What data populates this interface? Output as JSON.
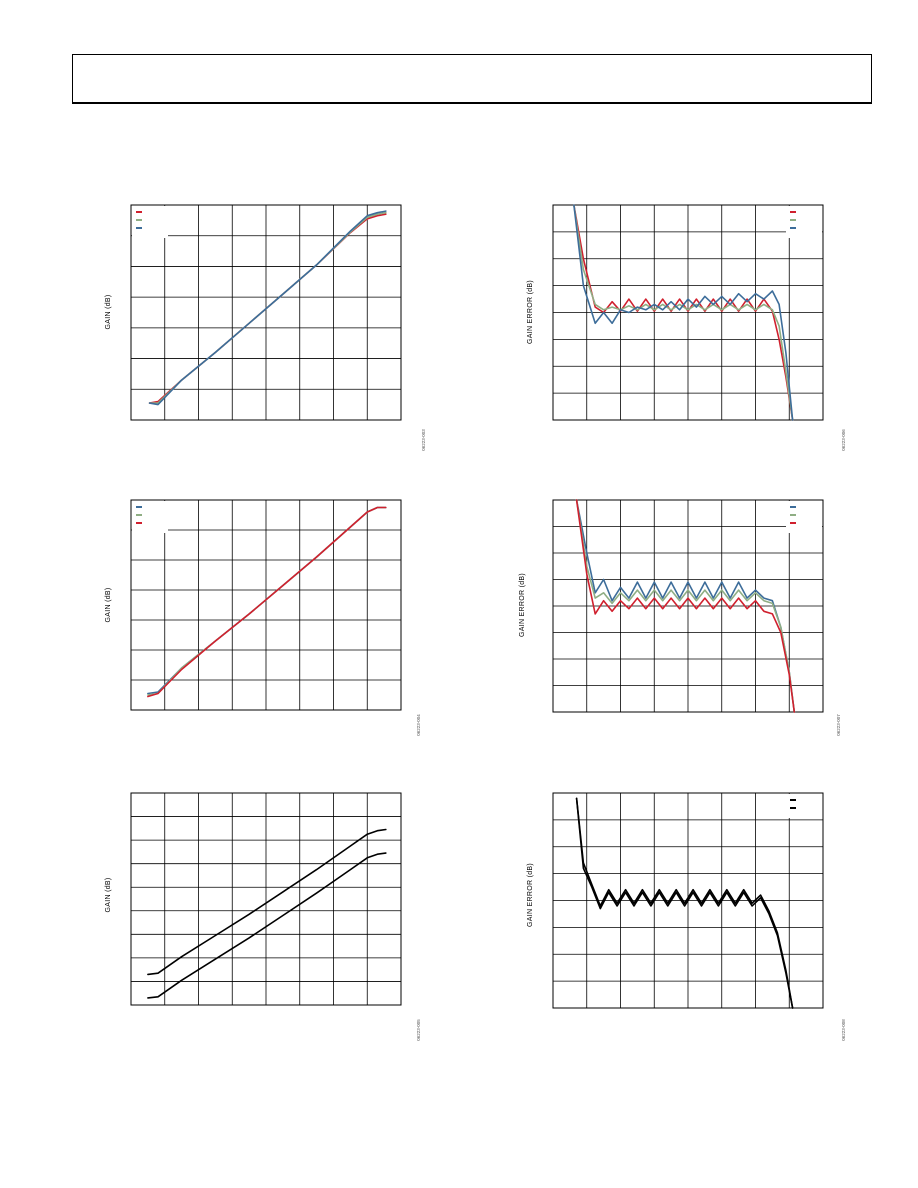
{
  "page": {
    "header_title": ""
  },
  "colors": {
    "red": "#d0202e",
    "blue": "#3d6d9a",
    "green": "#8fae84",
    "black": "#000000",
    "grid": "#000000"
  },
  "chart_data": [
    {
      "id": "chart-1",
      "type": "line",
      "ylabel": "GAIN (dB)",
      "figure_id": "06223-003",
      "legend": {
        "placement": "top-left",
        "entries": 3
      },
      "grid": {
        "x_divisions": 8,
        "y_divisions": 7
      },
      "xlim": [
        0,
        8
      ],
      "ylim": [
        0,
        7
      ],
      "series": [
        {
          "color": "red",
          "x": [
            0.55,
            0.8,
            1.5,
            2.5,
            3.5,
            4.5,
            5.5,
            6.5,
            7.0,
            7.3,
            7.55
          ],
          "y": [
            0.55,
            0.6,
            1.3,
            2.2,
            3.15,
            4.1,
            5.05,
            6.1,
            6.55,
            6.65,
            6.7
          ]
        },
        {
          "color": "green",
          "x": [
            0.55,
            0.8,
            1.5,
            2.5,
            3.5,
            4.5,
            5.5,
            6.5,
            7.0,
            7.3,
            7.55
          ],
          "y": [
            0.55,
            0.55,
            1.3,
            2.2,
            3.15,
            4.1,
            5.05,
            6.12,
            6.6,
            6.7,
            6.75
          ]
        },
        {
          "color": "blue",
          "x": [
            0.55,
            0.8,
            1.5,
            2.5,
            3.5,
            4.5,
            5.5,
            6.5,
            7.0,
            7.3,
            7.55
          ],
          "y": [
            0.55,
            0.5,
            1.3,
            2.2,
            3.15,
            4.1,
            5.05,
            6.15,
            6.65,
            6.75,
            6.8
          ]
        }
      ]
    },
    {
      "id": "chart-2",
      "type": "line",
      "ylabel": "GAIN (dB)",
      "figure_id": "06223-004",
      "legend": {
        "placement": "top-left",
        "entries": 3
      },
      "grid": {
        "x_divisions": 8,
        "y_divisions": 7
      },
      "xlim": [
        0,
        8
      ],
      "ylim": [
        0,
        7
      ],
      "series": [
        {
          "color": "blue",
          "x": [
            0.5,
            0.8,
            1.5,
            2.5,
            3.5,
            4.5,
            5.5,
            6.5,
            7.0,
            7.3,
            7.55
          ],
          "y": [
            0.55,
            0.6,
            1.4,
            2.3,
            3.2,
            4.15,
            5.1,
            6.1,
            6.6,
            6.75,
            6.75
          ]
        },
        {
          "color": "green",
          "x": [
            0.5,
            0.8,
            1.5,
            2.5,
            3.5,
            4.5,
            5.5,
            6.5,
            7.0,
            7.3,
            7.55
          ],
          "y": [
            0.5,
            0.55,
            1.4,
            2.3,
            3.2,
            4.15,
            5.1,
            6.1,
            6.6,
            6.75,
            6.75
          ]
        },
        {
          "color": "red",
          "x": [
            0.5,
            0.8,
            1.5,
            2.5,
            3.5,
            4.5,
            5.5,
            6.5,
            7.0,
            7.3,
            7.55
          ],
          "y": [
            0.45,
            0.55,
            1.35,
            2.3,
            3.2,
            4.15,
            5.1,
            6.1,
            6.6,
            6.75,
            6.75
          ]
        }
      ]
    },
    {
      "id": "chart-3",
      "type": "line",
      "ylabel": "GAIN (dB)",
      "figure_id": "06223-005",
      "legend": null,
      "grid": {
        "x_divisions": 8,
        "y_divisions": 9
      },
      "xlim": [
        0,
        8
      ],
      "ylim": [
        0,
        9
      ],
      "series": [
        {
          "color": "black",
          "x": [
            0.5,
            0.8,
            1.5,
            2.5,
            3.5,
            4.5,
            5.5,
            6.5,
            7.0,
            7.3,
            7.55
          ],
          "y": [
            1.3,
            1.35,
            2.05,
            2.95,
            3.85,
            4.8,
            5.75,
            6.75,
            7.25,
            7.4,
            7.45
          ]
        },
        {
          "color": "black",
          "x": [
            0.5,
            0.8,
            1.5,
            2.5,
            3.5,
            4.5,
            5.5,
            6.5,
            7.0,
            7.3,
            7.55
          ],
          "y": [
            0.3,
            0.35,
            1.05,
            1.95,
            2.85,
            3.8,
            4.75,
            5.75,
            6.25,
            6.4,
            6.45
          ]
        }
      ]
    },
    {
      "id": "chart-4",
      "type": "line",
      "ylabel": "GAIN ERROR (dB)",
      "figure_id": "06223-006",
      "legend": {
        "placement": "top-right",
        "entries": 3
      },
      "grid": {
        "x_divisions": 8,
        "y_divisions": 8
      },
      "xlim": [
        0,
        8
      ],
      "ylim": [
        -4,
        4
      ],
      "series": [
        {
          "color": "red",
          "x": [
            0.62,
            0.9,
            1.25,
            1.5,
            1.75,
            2.0,
            2.25,
            2.5,
            2.75,
            3.0,
            3.25,
            3.5,
            3.75,
            4.0,
            4.25,
            4.5,
            4.75,
            5.0,
            5.25,
            5.5,
            5.75,
            6.0,
            6.25,
            6.5,
            6.7,
            6.9,
            7.1
          ],
          "y": [
            4.0,
            2.0,
            0.2,
            0.0,
            0.4,
            0.05,
            0.5,
            0.05,
            0.5,
            0.05,
            0.5,
            0.05,
            0.5,
            0.05,
            0.5,
            0.05,
            0.5,
            0.05,
            0.5,
            0.05,
            0.5,
            0.05,
            0.5,
            0.05,
            -1.0,
            -2.4,
            -4.0
          ]
        },
        {
          "color": "green",
          "x": [
            0.62,
            0.9,
            1.25,
            1.5,
            1.75,
            2.0,
            2.25,
            2.5,
            2.75,
            3.0,
            3.25,
            3.5,
            3.75,
            4.0,
            4.25,
            4.5,
            4.75,
            5.0,
            5.25,
            5.5,
            5.75,
            6.0,
            6.25,
            6.5,
            6.7,
            6.9,
            7.1
          ],
          "y": [
            4.0,
            1.6,
            0.3,
            0.1,
            0.2,
            0.1,
            0.25,
            0.1,
            0.3,
            0.1,
            0.3,
            0.1,
            0.3,
            0.1,
            0.3,
            0.1,
            0.3,
            0.1,
            0.3,
            0.1,
            0.3,
            0.1,
            0.3,
            0.1,
            -0.5,
            -2.2,
            -4.0
          ]
        },
        {
          "color": "blue",
          "x": [
            0.62,
            0.9,
            1.25,
            1.5,
            1.75,
            2.0,
            2.25,
            2.5,
            2.75,
            3.0,
            3.25,
            3.5,
            3.75,
            4.0,
            4.25,
            4.5,
            4.75,
            5.0,
            5.25,
            5.5,
            5.75,
            6.0,
            6.25,
            6.5,
            6.7,
            6.9,
            7.1
          ],
          "y": [
            4.0,
            1.0,
            -0.4,
            0.0,
            -0.4,
            0.1,
            0.0,
            0.2,
            0.1,
            0.3,
            0.1,
            0.4,
            0.1,
            0.5,
            0.2,
            0.6,
            0.3,
            0.6,
            0.3,
            0.7,
            0.4,
            0.7,
            0.5,
            0.8,
            0.3,
            -1.5,
            -4.0
          ]
        }
      ]
    },
    {
      "id": "chart-5",
      "type": "line",
      "ylabel": "GAIN ERROR (dB)",
      "figure_id": "06223-007",
      "legend": {
        "placement": "top-right",
        "entries": 3
      },
      "grid": {
        "x_divisions": 8,
        "y_divisions": 8
      },
      "xlim": [
        0,
        8
      ],
      "ylim": [
        -4,
        4
      ],
      "series": [
        {
          "color": "blue",
          "x": [
            0.7,
            1.0,
            1.25,
            1.5,
            1.75,
            2.0,
            2.25,
            2.5,
            2.75,
            3.0,
            3.25,
            3.5,
            3.75,
            4.0,
            4.25,
            4.5,
            4.75,
            5.0,
            5.25,
            5.5,
            5.75,
            6.0,
            6.25,
            6.5,
            6.75,
            7.0,
            7.15
          ],
          "y": [
            4.0,
            2.0,
            0.5,
            1.0,
            0.2,
            0.7,
            0.3,
            0.9,
            0.3,
            0.9,
            0.3,
            0.9,
            0.3,
            0.9,
            0.3,
            0.9,
            0.3,
            0.9,
            0.3,
            0.9,
            0.3,
            0.6,
            0.3,
            0.2,
            -0.8,
            -2.5,
            -4.0
          ]
        },
        {
          "color": "green",
          "x": [
            0.7,
            1.0,
            1.25,
            1.5,
            1.75,
            2.0,
            2.25,
            2.5,
            2.75,
            3.0,
            3.25,
            3.5,
            3.75,
            4.0,
            4.25,
            4.5,
            4.75,
            5.0,
            5.25,
            5.5,
            5.75,
            6.0,
            6.25,
            6.5,
            6.75,
            7.0,
            7.15
          ],
          "y": [
            4.0,
            1.5,
            0.3,
            0.5,
            0.1,
            0.5,
            0.2,
            0.6,
            0.2,
            0.6,
            0.2,
            0.6,
            0.2,
            0.6,
            0.2,
            0.6,
            0.2,
            0.6,
            0.2,
            0.6,
            0.2,
            0.5,
            0.2,
            0.1,
            -0.8,
            -2.5,
            -4.0
          ]
        },
        {
          "color": "red",
          "x": [
            0.7,
            1.0,
            1.25,
            1.5,
            1.75,
            2.0,
            2.25,
            2.5,
            2.75,
            3.0,
            3.25,
            3.5,
            3.75,
            4.0,
            4.25,
            4.5,
            4.75,
            5.0,
            5.25,
            5.5,
            5.75,
            6.0,
            6.25,
            6.5,
            6.75,
            7.0,
            7.15
          ],
          "y": [
            4.0,
            1.2,
            -0.3,
            0.2,
            -0.2,
            0.2,
            -0.1,
            0.3,
            -0.1,
            0.3,
            -0.1,
            0.3,
            -0.1,
            0.3,
            -0.1,
            0.3,
            -0.1,
            0.3,
            -0.1,
            0.3,
            -0.1,
            0.2,
            -0.2,
            -0.3,
            -1.0,
            -2.6,
            -4.0
          ]
        }
      ]
    },
    {
      "id": "chart-6",
      "type": "line",
      "ylabel": "GAIN ERROR (dB)",
      "figure_id": "06223-008",
      "legend": {
        "placement": "top-right",
        "entries": 2
      },
      "grid": {
        "x_divisions": 8,
        "y_divisions": 8
      },
      "xlim": [
        0,
        8
      ],
      "ylim": [
        -4,
        4
      ],
      "series": [
        {
          "color": "black",
          "x": [
            0.7,
            0.9,
            1.15,
            1.4,
            1.65,
            1.9,
            2.15,
            2.4,
            2.65,
            2.9,
            3.15,
            3.4,
            3.65,
            3.9,
            4.15,
            4.4,
            4.65,
            4.9,
            5.15,
            5.4,
            5.65,
            5.9,
            6.15,
            6.4,
            6.65,
            6.9,
            7.1
          ],
          "y": [
            3.8,
            1.4,
            0.6,
            -0.2,
            0.4,
            -0.1,
            0.4,
            -0.1,
            0.4,
            -0.1,
            0.4,
            -0.1,
            0.4,
            -0.1,
            0.4,
            -0.1,
            0.4,
            -0.1,
            0.4,
            -0.1,
            0.4,
            -0.1,
            0.2,
            -0.4,
            -1.2,
            -2.6,
            -4.0
          ]
        },
        {
          "color": "black",
          "x": [
            0.7,
            0.9,
            1.15,
            1.4,
            1.65,
            1.9,
            2.15,
            2.4,
            2.65,
            2.9,
            3.15,
            3.4,
            3.65,
            3.9,
            4.15,
            4.4,
            4.65,
            4.9,
            5.15,
            5.4,
            5.65,
            5.9,
            6.15,
            6.4,
            6.65,
            6.9,
            7.1
          ],
          "y": [
            3.8,
            1.2,
            0.5,
            -0.3,
            0.3,
            -0.2,
            0.3,
            -0.2,
            0.3,
            -0.2,
            0.3,
            -0.2,
            0.3,
            -0.2,
            0.3,
            -0.2,
            0.3,
            -0.2,
            0.3,
            -0.2,
            0.3,
            -0.2,
            0.1,
            -0.5,
            -1.3,
            -2.7,
            -4.0
          ]
        }
      ]
    }
  ]
}
